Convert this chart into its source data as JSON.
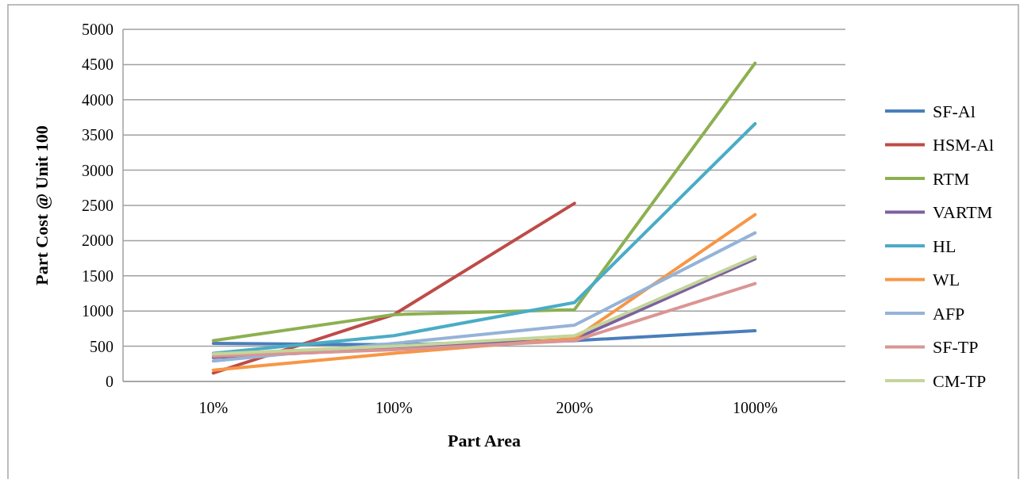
{
  "chart_data": {
    "type": "line",
    "xlabel": "Part Area",
    "ylabel": "Part Cost @ Unit 100",
    "categories": [
      "10%",
      "100%",
      "200%",
      "1000%"
    ],
    "ylim": [
      0,
      5000
    ],
    "yticks": [
      0,
      500,
      1000,
      1500,
      2000,
      2500,
      3000,
      3500,
      4000,
      4500,
      5000
    ],
    "grid": "y",
    "legend": "right",
    "marker": "none",
    "line_style": "solid",
    "series": [
      {
        "name": "SF-Al",
        "color": "#4a7ebb",
        "values": [
          540,
          520,
          580,
          720
        ]
      },
      {
        "name": "HSM-Al",
        "color": "#be4b48",
        "values": [
          120,
          950,
          2530,
          null
        ]
      },
      {
        "name": "RTM",
        "color": "#8cb050",
        "values": [
          580,
          950,
          1020,
          4520
        ]
      },
      {
        "name": "VARTM",
        "color": "#7d60a0",
        "values": [
          340,
          470,
          600,
          1740
        ]
      },
      {
        "name": "HL",
        "color": "#4aacc6",
        "values": [
          400,
          650,
          1120,
          3660
        ]
      },
      {
        "name": "WL",
        "color": "#f79646",
        "values": [
          160,
          400,
          610,
          2370
        ]
      },
      {
        "name": "AFP",
        "color": "#95b3d7",
        "values": [
          290,
          540,
          800,
          2110
        ]
      },
      {
        "name": "SF-TP",
        "color": "#d99694",
        "values": [
          360,
          450,
          580,
          1390
        ]
      },
      {
        "name": "CM-TP",
        "color": "#c3d69b",
        "values": [
          390,
          500,
          650,
          1770
        ]
      }
    ]
  }
}
